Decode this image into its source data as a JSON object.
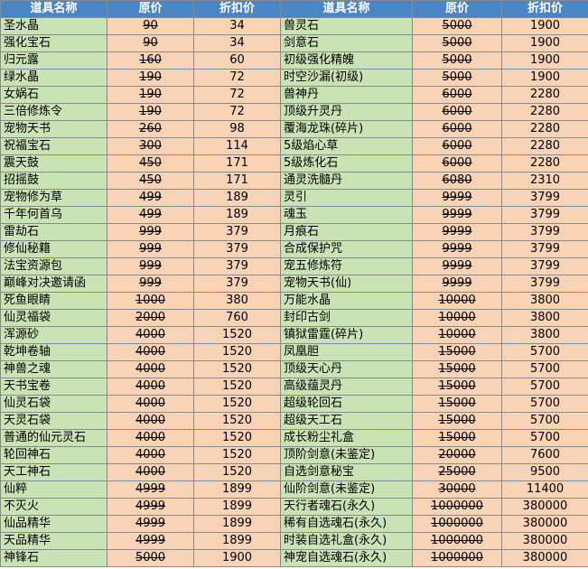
{
  "table": {
    "header": [
      "道具名称",
      "原价",
      "折扣价",
      "道具名称",
      "原价",
      "折扣价"
    ],
    "rows": [
      [
        "圣水晶",
        90,
        34,
        "兽灵石",
        5000,
        1900
      ],
      [
        "强化宝石",
        90,
        34,
        "剑意石",
        5000,
        1900
      ],
      [
        "归元露",
        160,
        60,
        "初级强化精魄",
        5000,
        1900
      ],
      [
        "绿水晶",
        190,
        72,
        "时空沙漏(初级)",
        5000,
        1900
      ],
      [
        "女娲石",
        190,
        72,
        "兽神丹",
        6000,
        2280
      ],
      [
        "三倍修炼令",
        190,
        72,
        "顶级升灵丹",
        6000,
        2280
      ],
      [
        "宠物天书",
        260,
        98,
        "覆海龙珠(碎片)",
        6000,
        2280
      ],
      [
        "祝福宝石",
        300,
        114,
        "5级焰心草",
        6000,
        2280
      ],
      [
        "震天鼓",
        450,
        171,
        "5级炼化石",
        6000,
        2280
      ],
      [
        "招摇鼓",
        450,
        171,
        "通灵洗髓丹",
        6080,
        2310
      ],
      [
        "宠物修为草",
        499,
        189,
        "灵引",
        9999,
        3799
      ],
      [
        "千年何首乌",
        499,
        189,
        "魂玉",
        9999,
        3799
      ],
      [
        "雷劫石",
        999,
        379,
        "月痕石",
        9999,
        3799
      ],
      [
        "修仙秘籍",
        999,
        379,
        "合成保护咒",
        9999,
        3799
      ],
      [
        "法宝资源包",
        999,
        379,
        "宠五修炼符",
        9999,
        3799
      ],
      [
        "巅峰对决邀请函",
        999,
        379,
        "宠物天书(仙)",
        9999,
        3799
      ],
      [
        "死鱼眼睛",
        1000,
        380,
        "万能水晶",
        10000,
        3800
      ],
      [
        "仙灵福袋",
        2000,
        760,
        "封印古剑",
        10000,
        3800
      ],
      [
        "浑源砂",
        4000,
        1520,
        "镇狱雷霆(碎片)",
        10000,
        3800
      ],
      [
        "乾坤卷轴",
        4000,
        1520,
        "凤凰胆",
        15000,
        5700
      ],
      [
        "神兽之魂",
        4000,
        1520,
        "顶级天心丹",
        15000,
        5700
      ],
      [
        "天书宝卷",
        4000,
        1520,
        "高级蕴灵丹",
        15000,
        5700
      ],
      [
        "仙灵石袋",
        4000,
        1520,
        "超级轮回石",
        15000,
        5700
      ],
      [
        "天灵石袋",
        4000,
        1520,
        "超级天工石",
        15000,
        5700
      ],
      [
        "普通的仙元灵石",
        4000,
        1520,
        "成长粉尘礼盒",
        15000,
        5700
      ],
      [
        "轮回神石",
        4000,
        1520,
        "顶阶剑意(未鉴定)",
        20000,
        7600
      ],
      [
        "天工神石",
        4000,
        1520,
        "自选剑意秘宝",
        25000,
        9500
      ],
      [
        "仙粹",
        4999,
        1899,
        "仙阶剑意(未鉴定)",
        30000,
        11400
      ],
      [
        "不灭火",
        4999,
        1899,
        "天行者魂石(永久)",
        1000000,
        380000
      ],
      [
        "仙品精华",
        4999,
        1899,
        "稀有自选魂石(永久)",
        1000000,
        380000
      ],
      [
        "天品精华",
        4999,
        1899,
        "时装自选礼盒(永久)",
        1000000,
        380000
      ],
      [
        "神锋石",
        5000,
        1900,
        "神宠自选魂石(永久)",
        1000000,
        380000
      ]
    ]
  }
}
